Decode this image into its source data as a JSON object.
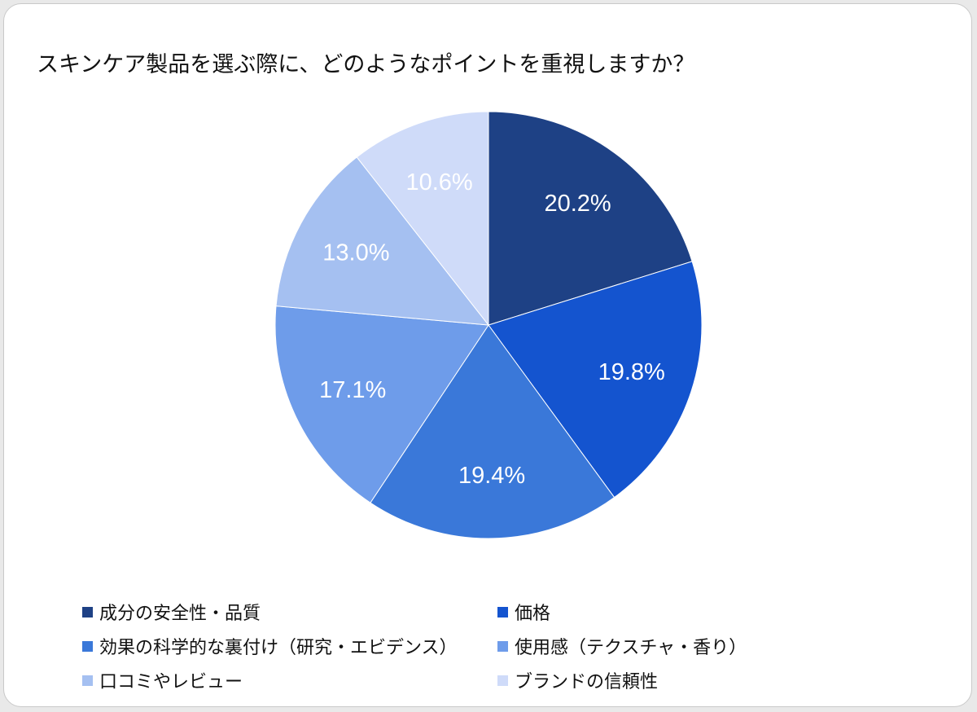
{
  "title": "スキンケア製品を選ぶ際に、どのようなポイントを重視しますか？",
  "chart_data": {
    "type": "pie",
    "title": "スキンケア製品を選ぶ際に、どのようなポイントを重視しますか？",
    "start_angle_deg": 0,
    "direction": "clockwise",
    "legend_position": "bottom",
    "slices": [
      {
        "label": "成分の安全性・品質",
        "value": 20.2,
        "value_label": "20.2%",
        "color": "#1e4185"
      },
      {
        "label": "価格",
        "value": 19.8,
        "value_label": "19.8%",
        "color": "#1454cf"
      },
      {
        "label": "効果の科学的な裏付け（研究・エビデンス）",
        "value": 19.4,
        "value_label": "19.4%",
        "color": "#3a78d9"
      },
      {
        "label": "使用感（テクスチャ・香り）",
        "value": 17.1,
        "value_label": "17.1%",
        "color": "#6e9cea"
      },
      {
        "label": "口コミやレビュー",
        "value": 13.0,
        "value_label": "13.0%",
        "color": "#a5c0f1"
      },
      {
        "label": "ブランドの信頼性",
        "value": 10.6,
        "value_label": "10.6%",
        "color": "#cfdbf9"
      }
    ]
  }
}
